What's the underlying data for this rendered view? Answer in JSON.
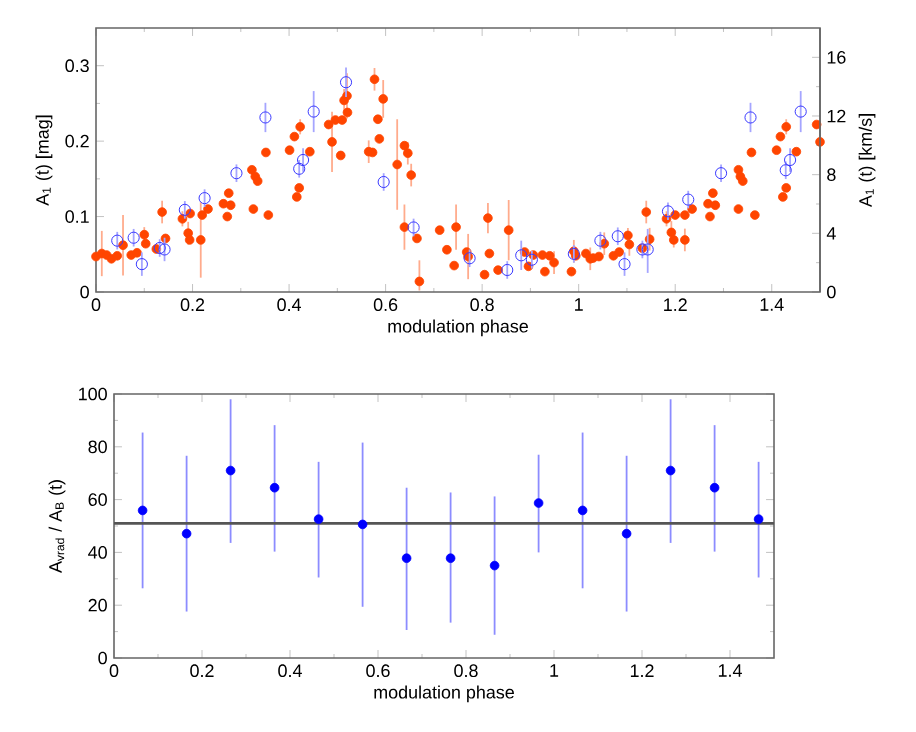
{
  "chart_data": [
    {
      "type": "scatter",
      "xlabel": "modulation phase",
      "ylabel": "A$_{1}$ (t) [mag]",
      "y2label": "A$_{1}$ (t) [km/s]",
      "xlim": [
        0,
        1.5
      ],
      "xticks": [
        0,
        0.2,
        0.4,
        0.6,
        0.8,
        1,
        1.2,
        1.4
      ],
      "ylim": [
        0,
        0.35
      ],
      "yticks": [
        0,
        0.1,
        0.2,
        0.3
      ],
      "y2lim": [
        0,
        18
      ],
      "y2ticks": [
        0,
        4,
        8,
        12,
        16
      ],
      "marker": "circle",
      "series": [
        {
          "color": "#ff4500",
          "x": [
            0.0,
            0.012,
            0.022,
            0.032,
            0.044,
            0.056,
            0.073,
            0.085,
            0.1,
            0.103,
            0.125,
            0.137,
            0.144,
            0.179,
            0.191,
            0.195,
            0.194,
            0.217,
            0.22,
            0.232,
            0.264,
            0.272,
            0.275,
            0.279,
            0.323,
            0.326,
            0.33,
            0.335,
            0.352,
            0.357,
            0.401,
            0.411,
            0.416,
            0.421,
            0.423,
            0.443,
            0.482,
            0.489,
            0.496,
            0.507,
            0.51,
            0.514,
            0.52,
            0.521,
            0.565,
            0.573,
            0.577,
            0.584,
            0.587,
            0.595,
            0.624,
            0.639,
            0.646,
            0.653,
            0.639,
            0.665,
            0.67,
            0.712,
            0.727,
            0.742,
            0.746,
            0.768,
            0.771,
            0.805,
            0.812,
            0.815,
            0.833,
            0.855,
            0.888,
            0.896,
            0.906,
            0.925,
            0.93,
            0.94,
            0.949,
            0.985,
            0.99,
            0.994,
            1.015,
            1.024,
            1.03,
            1.042,
            1.053,
            1.072,
            1.084,
            1.102,
            1.105,
            1.132,
            1.14,
            1.147,
            1.182,
            1.192,
            1.197,
            1.2,
            1.22,
            1.22,
            1.235,
            1.268,
            1.272,
            1.278,
            1.283,
            1.331,
            1.331,
            1.335,
            1.34,
            1.358,
            1.365,
            1.41,
            1.418,
            1.423,
            1.43,
            1.43,
            1.451,
            1.493,
            1.5
          ],
          "values": [
            0.047,
            0.051,
            0.049,
            0.044,
            0.048,
            0.062,
            0.049,
            0.052,
            0.076,
            0.064,
            0.057,
            0.106,
            0.071,
            0.097,
            0.078,
            0.104,
            0.069,
            0.069,
            0.102,
            0.11,
            0.117,
            0.1,
            0.131,
            0.115,
            0.162,
            0.11,
            0.153,
            0.147,
            0.185,
            0.102,
            0.188,
            0.206,
            0.126,
            0.138,
            0.219,
            0.186,
            0.222,
            0.199,
            0.228,
            0.181,
            0.228,
            0.254,
            0.26,
            0.238,
            0.186,
            0.185,
            0.282,
            0.229,
            0.203,
            0.256,
            0.169,
            0.194,
            0.184,
            0.155,
            0.086,
            0.071,
            0.014,
            0.082,
            0.056,
            0.035,
            0.086,
            0.053,
            0.047,
            0.023,
            0.098,
            0.051,
            0.029,
            0.082,
            0.053,
            0.034,
            0.049,
            0.049,
            0.027,
            0.048,
            0.039,
            0.027,
            0.054,
            0.048,
            0.051,
            0.044,
            0.045,
            0.047,
            0.064,
            0.048,
            0.053,
            0.075,
            0.063,
            0.058,
            0.106,
            0.07,
            0.097,
            0.079,
            0.069,
            0.102,
            0.102,
            0.069,
            0.11,
            0.117,
            0.1,
            0.131,
            0.115,
            0.162,
            0.11,
            0.153,
            0.147,
            0.185,
            0.102,
            0.188,
            0.206,
            0.126,
            0.138,
            0.219,
            0.186,
            0.222,
            0.199
          ],
          "errors": [
            null,
            0.03,
            null,
            null,
            null,
            0.04,
            null,
            null,
            0.01,
            null,
            null,
            0.015,
            null,
            0.01,
            0.015,
            null,
            null,
            0.05,
            null,
            null,
            null,
            null,
            null,
            null,
            null,
            null,
            null,
            null,
            null,
            null,
            null,
            null,
            null,
            null,
            0.01,
            null,
            null,
            0.04,
            null,
            null,
            null,
            0.015,
            0.03,
            null,
            0.015,
            null,
            0.015,
            null,
            null,
            0.025,
            0.06,
            null,
            0.015,
            0.015,
            0.03,
            null,
            [
              0.002,
              0.042
            ],
            null,
            null,
            null,
            0.03,
            null,
            0.03,
            null,
            0.02,
            null,
            null,
            0.04,
            null,
            null,
            null,
            null,
            null,
            null,
            0.015,
            null,
            0.015,
            null,
            null,
            0.015,
            null,
            null,
            0.015,
            null,
            null,
            0.01,
            0.015,
            null,
            0.015,
            0.015,
            0.01,
            0.015,
            0.01,
            null,
            null,
            0.015,
            null,
            null,
            null,
            null,
            null,
            null,
            null,
            null,
            null,
            null,
            null,
            null,
            null,
            null,
            null,
            0.01,
            null,
            null,
            null
          ]
        },
        {
          "color": "#3838ff",
          "axis": "y2",
          "x": [
            0.044,
            0.078,
            0.095,
            0.132,
            0.142,
            0.184,
            0.225,
            0.291,
            0.351,
            0.421,
            0.429,
            0.451,
            0.518,
            0.596,
            0.658,
            0.774,
            0.852,
            0.881,
            0.903,
            0.99,
            1.045,
            1.081,
            1.095,
            1.132,
            1.143,
            1.185,
            1.227,
            1.295,
            1.356,
            1.429,
            1.438,
            1.46
          ],
          "values": [
            3.5,
            3.7,
            1.9,
            3.0,
            2.9,
            5.6,
            6.4,
            8.1,
            11.9,
            8.4,
            9.0,
            12.3,
            14.3,
            7.5,
            4.4,
            2.3,
            1.5,
            2.5,
            2.2,
            2.6,
            3.5,
            3.8,
            1.9,
            2.9,
            2.9,
            5.5,
            6.3,
            8.1,
            11.9,
            8.3,
            9.0,
            12.3
          ],
          "errors": [
            0.6,
            0.6,
            0.8,
            0.6,
            0.8,
            0.6,
            0.6,
            0.6,
            1.0,
            0.6,
            0.8,
            1.4,
            1.0,
            0.6,
            0.6,
            0.6,
            0.6,
            1.0,
            0.6,
            0.6,
            0.6,
            0.6,
            0.8,
            0.6,
            [
              1.3,
              4.3
            ],
            0.6,
            0.6,
            0.6,
            1.0,
            0.6,
            0.8,
            1.4
          ]
        }
      ]
    },
    {
      "type": "scatter",
      "xlabel": "modulation phase",
      "ylabel": "A$_{vrad}$ / A$_{B}$ (t)",
      "xlim": [
        0,
        1.5
      ],
      "xticks": [
        0,
        0.2,
        0.4,
        0.6,
        0.8,
        1,
        1.2,
        1.4
      ],
      "ylim": [
        0,
        100
      ],
      "yticks": [
        0,
        20,
        40,
        60,
        80,
        100
      ],
      "marker": "circle",
      "ref_lines": [
        {
          "axis": "y",
          "value": 51,
          "color": "#555555"
        }
      ],
      "series": [
        {
          "color": "#0000ff",
          "x": [
            0.065,
            0.165,
            0.265,
            0.365,
            0.465,
            0.565,
            0.665,
            0.765,
            0.865,
            0.965,
            1.065,
            1.165,
            1.265,
            1.365,
            1.465
          ],
          "values": [
            55.9,
            47.1,
            71,
            64.5,
            52.6,
            50.6,
            37.8,
            37.8,
            35,
            58.7,
            55.9,
            47.1,
            71,
            64.5,
            52.6
          ],
          "errors": [
            [
              26.4,
              85.4
            ],
            [
              17.6,
              76.6
            ],
            [
              43.6,
              98
            ],
            [
              40.3,
              88.2
            ],
            [
              30.5,
              74.3
            ],
            [
              19.4,
              81.6
            ],
            [
              10.6,
              64.5
            ],
            [
              13.4,
              62.7
            ],
            [
              8.8,
              61.2
            ],
            [
              40,
              77
            ],
            [
              26.4,
              85.4
            ],
            [
              17.6,
              76.6
            ],
            [
              43.6,
              98
            ],
            [
              40.3,
              88.2
            ],
            [
              30.5,
              74.3
            ]
          ]
        }
      ]
    }
  ]
}
